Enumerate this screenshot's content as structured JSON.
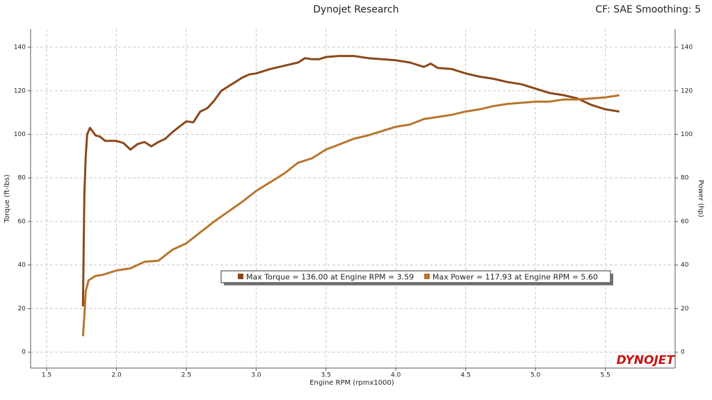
{
  "chart_data": {
    "type": "line",
    "title": "Dynojet Research",
    "subtitle": "CF: SAE Smoothing: 5",
    "x_label": "Engine RPM (rpmx1000)",
    "y_label": "Torque (ft-lbs)",
    "y2_label": "Power (hp)",
    "logo": "DYNOJET",
    "grid": true,
    "xlim": [
      1.385,
      6.0
    ],
    "ylim": [
      -7.3,
      148.3
    ],
    "y2lim": [
      -7.3,
      148.3
    ],
    "xticks": [
      1.5,
      {
        "value": 2,
        "label": "2.0"
      },
      2.5,
      {
        "value": 3,
        "label": "3.0"
      },
      3.5,
      {
        "value": 4,
        "label": "4.0"
      },
      4.5,
      {
        "value": 5,
        "label": "5.0"
      },
      5.5
    ],
    "yticks": [
      0,
      20,
      40,
      60,
      80,
      100,
      120,
      140
    ],
    "y2ticks": [
      0,
      20,
      40,
      60,
      80,
      100,
      120,
      140
    ],
    "series": [
      {
        "name": "Max Torque = 136.00 at Engine RPM = 3.59",
        "color": "#8a4719",
        "x": [
          1.76,
          1.77,
          1.78,
          1.79,
          1.81,
          1.85,
          1.88,
          1.92,
          2.0,
          2.05,
          2.1,
          2.15,
          2.2,
          2.25,
          2.3,
          2.35,
          2.4,
          2.45,
          2.5,
          2.55,
          2.6,
          2.65,
          2.7,
          2.75,
          2.8,
          2.85,
          2.9,
          2.95,
          3.0,
          3.1,
          3.2,
          3.3,
          3.35,
          3.4,
          3.45,
          3.5,
          3.59,
          3.7,
          3.8,
          3.9,
          4.0,
          4.1,
          4.2,
          4.25,
          4.3,
          4.4,
          4.5,
          4.6,
          4.7,
          4.8,
          4.9,
          5.0,
          5.1,
          5.2,
          5.3,
          5.4,
          5.5,
          5.6
        ],
        "values": [
          21,
          72,
          90,
          100,
          103,
          99.5,
          99,
          97,
          97,
          96,
          93,
          95.5,
          96.5,
          94.5,
          96.5,
          98,
          101,
          103.5,
          106,
          105.5,
          110.5,
          112,
          115.5,
          120,
          122,
          124,
          126,
          127.5,
          128,
          130,
          131.5,
          133,
          135,
          134.5,
          134.5,
          135.5,
          136,
          136,
          135,
          134.5,
          134,
          133,
          131,
          132.5,
          130.5,
          130,
          128,
          126.5,
          125.5,
          124,
          123,
          121,
          119,
          118,
          116.5,
          113.5,
          111.5,
          110.5
        ]
      },
      {
        "name": "Max Power = 117.93 at Engine RPM = 5.60",
        "color": "#b8742c",
        "axis": "y2",
        "x": [
          1.76,
          1.77,
          1.78,
          1.8,
          1.85,
          1.9,
          2.0,
          2.1,
          2.2,
          2.3,
          2.4,
          2.5,
          2.6,
          2.7,
          2.8,
          2.9,
          3.0,
          3.1,
          3.2,
          3.3,
          3.4,
          3.5,
          3.6,
          3.7,
          3.8,
          3.9,
          4.0,
          4.1,
          4.2,
          4.3,
          4.4,
          4.5,
          4.6,
          4.7,
          4.8,
          4.9,
          5.0,
          5.1,
          5.2,
          5.3,
          5.4,
          5.5,
          5.6
        ],
        "values": [
          7.3,
          16.5,
          28,
          33,
          35,
          35.5,
          37.5,
          38.5,
          41.5,
          42,
          47,
          50,
          55,
          60,
          64.5,
          69,
          74,
          78,
          82,
          87,
          89,
          93,
          95.5,
          98,
          99.5,
          101.5,
          103.5,
          104.5,
          107,
          108,
          109,
          110.5,
          111.5,
          113,
          114,
          114.5,
          115,
          115,
          116,
          116,
          116.5,
          117,
          117.93
        ]
      }
    ]
  }
}
